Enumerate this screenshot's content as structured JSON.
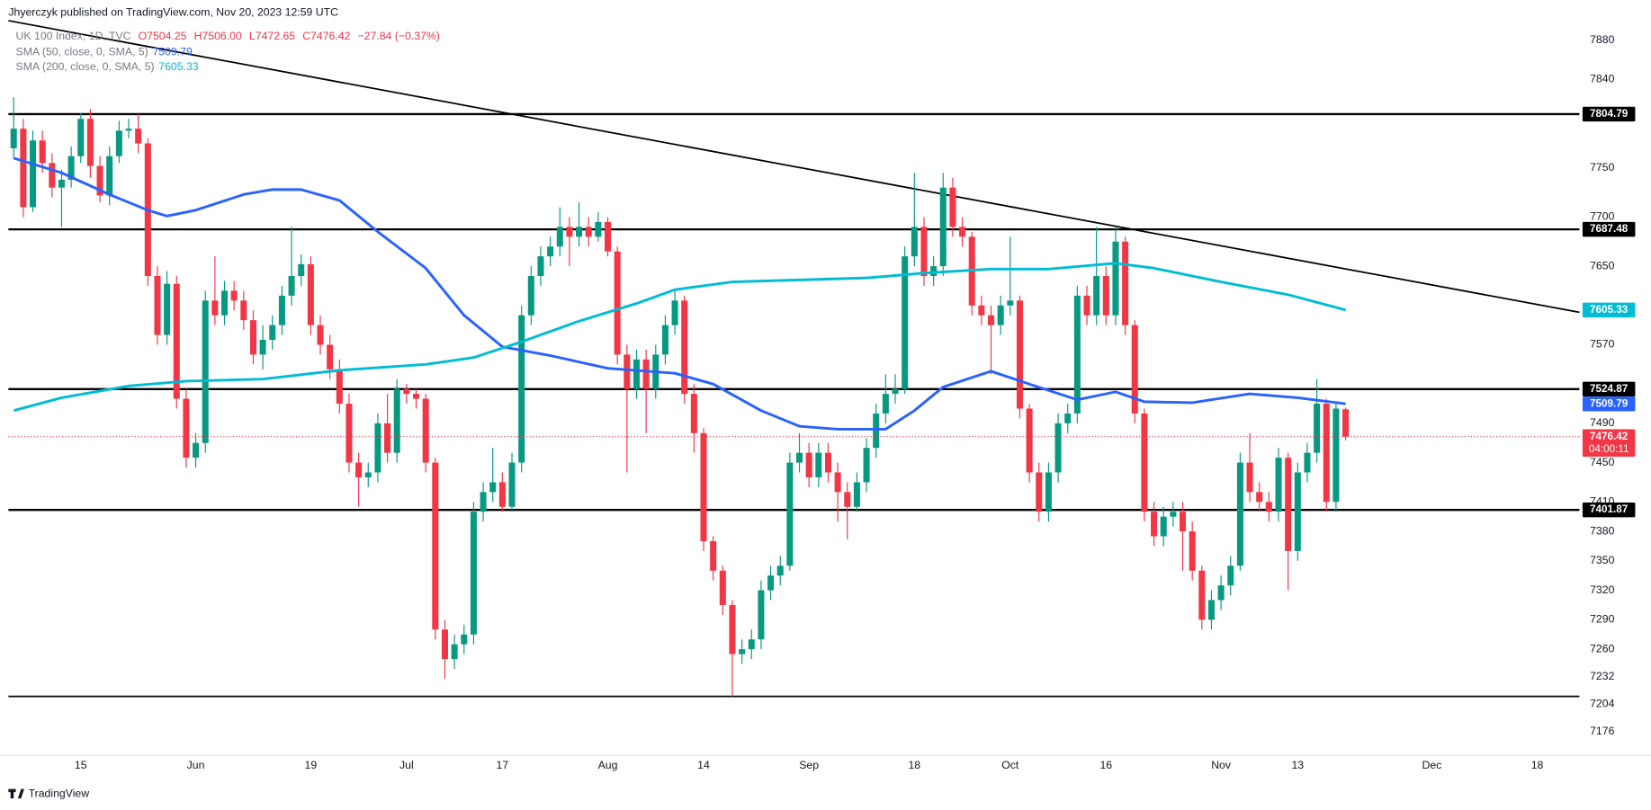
{
  "chart_data": {
    "type": "candlestick",
    "attribution": "Jhyerczyk published on TradingView.com, Nov 20, 2023 12:59 UTC",
    "symbol": "UK 100 Index, 1D, TVC",
    "header": {
      "open": "O7504.25",
      "high": "H7506.00",
      "low": "L7472.65",
      "close": "C7476.42",
      "change": "−27.84 (−0.37%)"
    },
    "countdown": "04:00:11",
    "footer": "TradingView",
    "up_color": "#089981",
    "down_color": "#f23645",
    "grid": false,
    "xlim": [
      -0.55,
      163.4
    ],
    "xticks": [
      {
        "value": 7,
        "label": "15"
      },
      {
        "value": 19,
        "label": "Jun"
      },
      {
        "value": 31,
        "label": "19"
      },
      {
        "value": 41,
        "label": "Jul"
      },
      {
        "value": 51,
        "label": "17"
      },
      {
        "value": 62,
        "label": "Aug"
      },
      {
        "value": 72,
        "label": "14"
      },
      {
        "value": 83,
        "label": "Sep"
      },
      {
        "value": 94,
        "label": "18"
      },
      {
        "value": 104,
        "label": "Oct"
      },
      {
        "value": 114,
        "label": "16"
      },
      {
        "value": 126,
        "label": "Nov"
      },
      {
        "value": 134,
        "label": "13"
      },
      {
        "value": 148,
        "label": "Dec"
      },
      {
        "value": 159,
        "label": "18"
      }
    ],
    "ylim": [
      7152,
      7921
    ],
    "yticks": [
      7880,
      7840,
      7750,
      7700,
      7650,
      7570,
      7490,
      7450,
      7410,
      7380,
      7350,
      7320,
      7290,
      7260,
      7232,
      7204,
      7176
    ],
    "open": [
      7770,
      7790,
      7710,
      7778,
      7755,
      7730,
      7738,
      7762,
      7800,
      7752,
      7722,
      7762,
      7788,
      7790,
      7775,
      7640,
      7580,
      7632,
      7515,
      7455,
      7470,
      7615,
      7600,
      7625,
      7615,
      7595,
      7560,
      7575,
      7590,
      7620,
      7640,
      7652,
      7590,
      7570,
      7545,
      7510,
      7450,
      7435,
      7440,
      7490,
      7460,
      7525,
      7520,
      7515,
      7450,
      7280,
      7250,
      7265,
      7275,
      7400,
      7420,
      7430,
      7405,
      7450,
      7600,
      7640,
      7660,
      7670,
      7690,
      7680,
      7690,
      7680,
      7695,
      7665,
      7560,
      7525,
      7555,
      7525,
      7560,
      7590,
      7615,
      7520,
      7480,
      7370,
      7340,
      7305,
      7255,
      7260,
      7270,
      7320,
      7335,
      7345,
      7450,
      7460,
      7435,
      7460,
      7440,
      7420,
      7405,
      7430,
      7465,
      7500,
      7520,
      7525,
      7660,
      7690,
      7640,
      7650,
      7730,
      7690,
      7680,
      7610,
      7600,
      7590,
      7610,
      7615,
      7505,
      7440,
      7400,
      7440,
      7490,
      7500,
      7620,
      7600,
      7640,
      7600,
      7675,
      7590,
      7500,
      7400,
      7375,
      7395,
      7400,
      7380,
      7340,
      7290,
      7310,
      7325,
      7345,
      7450,
      7420,
      7410,
      7400,
      7455,
      7360,
      7440,
      7460,
      7510,
      7410,
      7504.25
    ],
    "high": [
      7822,
      7800,
      7788,
      7788,
      7765,
      7748,
      7772,
      7806,
      7810,
      7762,
      7772,
      7798,
      7800,
      7805,
      7780,
      7650,
      7645,
      7640,
      7525,
      7480,
      7625,
      7660,
      7635,
      7635,
      7625,
      7605,
      7590,
      7600,
      7630,
      7690,
      7662,
      7660,
      7600,
      7580,
      7555,
      7520,
      7460,
      7450,
      7500,
      7520,
      7535,
      7530,
      7525,
      7520,
      7455,
      7290,
      7275,
      7285,
      7410,
      7430,
      7465,
      7440,
      7460,
      7610,
      7650,
      7670,
      7680,
      7710,
      7700,
      7715,
      7700,
      7705,
      7700,
      7670,
      7570,
      7565,
      7565,
      7570,
      7600,
      7625,
      7620,
      7530,
      7485,
      7375,
      7345,
      7310,
      7270,
      7280,
      7330,
      7345,
      7355,
      7460,
      7480,
      7470,
      7470,
      7470,
      7450,
      7430,
      7440,
      7475,
      7510,
      7540,
      7540,
      7670,
      7745,
      7700,
      7660,
      7745,
      7740,
      7700,
      7685,
      7620,
      7610,
      7620,
      7680,
      7620,
      7510,
      7450,
      7450,
      7500,
      7510,
      7630,
      7630,
      7690,
      7650,
      7690,
      7680,
      7595,
      7505,
      7410,
      7405,
      7410,
      7410,
      7390,
      7345,
      7320,
      7335,
      7355,
      7460,
      7480,
      7430,
      7420,
      7465,
      7460,
      7450,
      7470,
      7535,
      7515,
      7510,
      7506
    ],
    "low": [
      7760,
      7700,
      7705,
      7745,
      7720,
      7690,
      7730,
      7755,
      7740,
      7715,
      7712,
      7755,
      7780,
      7765,
      7630,
      7570,
      7570,
      7505,
      7445,
      7445,
      7460,
      7590,
      7590,
      7605,
      7585,
      7550,
      7545,
      7565,
      7580,
      7610,
      7630,
      7580,
      7560,
      7535,
      7500,
      7440,
      7405,
      7425,
      7430,
      7450,
      7450,
      7510,
      7505,
      7440,
      7270,
      7230,
      7240,
      7255,
      7265,
      7390,
      7410,
      7400,
      7400,
      7440,
      7590,
      7630,
      7650,
      7660,
      7650,
      7670,
      7670,
      7675,
      7660,
      7550,
      7440,
      7515,
      7480,
      7515,
      7550,
      7580,
      7510,
      7460,
      7360,
      7330,
      7295,
      7212,
      7245,
      7250,
      7260,
      7310,
      7325,
      7340,
      7440,
      7425,
      7425,
      7430,
      7390,
      7372,
      7400,
      7420,
      7455,
      7490,
      7510,
      7520,
      7650,
      7630,
      7630,
      7640,
      7680,
      7670,
      7600,
      7590,
      7540,
      7580,
      7600,
      7495,
      7430,
      7390,
      7390,
      7430,
      7480,
      7490,
      7590,
      7590,
      7590,
      7590,
      7580,
      7490,
      7390,
      7365,
      7365,
      7385,
      7340,
      7330,
      7280,
      7280,
      7300,
      7315,
      7340,
      7410,
      7400,
      7390,
      7390,
      7320,
      7350,
      7430,
      7450,
      7400,
      7400,
      7472.65
    ],
    "close": [
      7790,
      7710,
      7778,
      7755,
      7730,
      7738,
      7762,
      7800,
      7752,
      7722,
      7762,
      7788,
      7790,
      7775,
      7640,
      7580,
      7632,
      7515,
      7455,
      7470,
      7615,
      7600,
      7625,
      7615,
      7595,
      7560,
      7575,
      7590,
      7620,
      7640,
      7652,
      7590,
      7570,
      7545,
      7510,
      7450,
      7435,
      7440,
      7490,
      7460,
      7525,
      7520,
      7515,
      7450,
      7280,
      7250,
      7265,
      7275,
      7400,
      7420,
      7430,
      7405,
      7450,
      7600,
      7640,
      7660,
      7670,
      7690,
      7680,
      7690,
      7680,
      7695,
      7665,
      7560,
      7525,
      7555,
      7525,
      7560,
      7590,
      7615,
      7520,
      7480,
      7370,
      7340,
      7305,
      7255,
      7260,
      7270,
      7320,
      7335,
      7345,
      7450,
      7460,
      7435,
      7460,
      7440,
      7420,
      7405,
      7430,
      7465,
      7500,
      7520,
      7525,
      7660,
      7690,
      7640,
      7650,
      7730,
      7690,
      7680,
      7610,
      7600,
      7590,
      7610,
      7615,
      7505,
      7440,
      7400,
      7440,
      7490,
      7500,
      7620,
      7600,
      7640,
      7600,
      7675,
      7590,
      7500,
      7400,
      7375,
      7395,
      7400,
      7380,
      7340,
      7290,
      7310,
      7325,
      7345,
      7450,
      7420,
      7410,
      7400,
      7455,
      7360,
      7440,
      7460,
      7510,
      7410,
      7505,
      7476.42
    ],
    "series": [
      {
        "name": "SMA (50, close, 0, SMA, 5)",
        "color": "#2962ff",
        "x": [
          0,
          5,
          10,
          14,
          16,
          19,
          24,
          27,
          30,
          34,
          38,
          43,
          47,
          51,
          56,
          62,
          69,
          73,
          78,
          82,
          86,
          91,
          94,
          97,
          102,
          106,
          111,
          115,
          118,
          123,
          129,
          134,
          139
        ],
        "values": [
          7760,
          7745,
          7723,
          7707,
          7701,
          7707,
          7723,
          7728,
          7728,
          7717,
          7685,
          7648,
          7600,
          7568,
          7559,
          7546,
          7541,
          7530,
          7503,
          7487,
          7484,
          7484,
          7503,
          7527,
          7543,
          7530,
          7514,
          7522,
          7512,
          7511,
          7520,
          7516,
          7509.79
        ]
      },
      {
        "name": "SMA (200, close, 0, SMA, 5)",
        "color": "#00bcd4",
        "x": [
          0,
          5,
          12,
          18,
          26,
          34,
          43,
          48,
          53,
          59,
          65,
          69,
          75,
          82,
          89,
          95,
          102,
          108,
          115,
          119,
          126,
          133,
          139
        ],
        "values": [
          7503,
          7516,
          7528,
          7533,
          7535,
          7544,
          7550,
          7557,
          7573,
          7594,
          7612,
          7626,
          7634,
          7636,
          7638,
          7643,
          7647,
          7647,
          7653,
          7648,
          7634,
          7621,
          7605.33
        ]
      }
    ],
    "levels": [
      7804.79,
      7687.48,
      7524.87,
      7401.87
    ],
    "support_line": 7212,
    "trendline": [
      7900,
      7603
    ]
  }
}
